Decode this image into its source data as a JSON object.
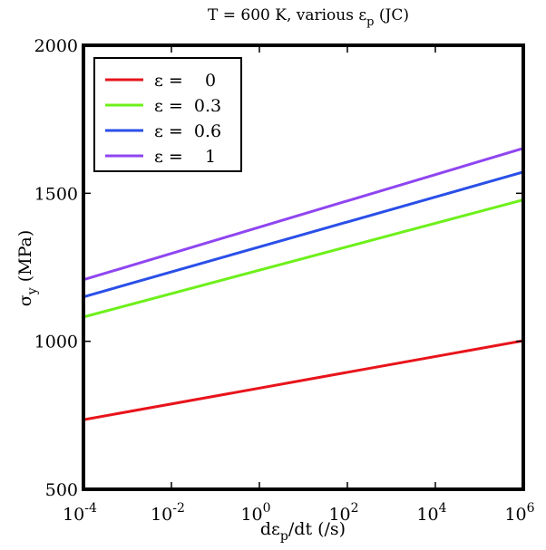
{
  "chart_data": {
    "type": "line",
    "title": "T = 600 K, various ε",
    "title_subscript": "p",
    "title_suffix": " (JC)",
    "xlabel": "dε",
    "xlabel_subscript": "p",
    "xlabel_suffix": "/dt (/s)",
    "ylabel": "σ",
    "ylabel_subscript": "y",
    "ylabel_suffix": " (MPa)",
    "xscale": "log10",
    "xlim_exponent": [
      -4,
      6
    ],
    "ylim": [
      500,
      2000
    ],
    "x_tick_exponents": [
      -4,
      -2,
      0,
      2,
      4,
      6
    ],
    "x_tick_base": "10",
    "x_tick_labels": [
      "-4",
      "-2",
      "0",
      "2",
      "4",
      "6"
    ],
    "y_ticks": [
      500,
      1000,
      1500,
      2000
    ],
    "y_tick_labels": [
      "500",
      "1000",
      "1500",
      "2000"
    ],
    "grid": false,
    "legend_position": "top-left",
    "series": [
      {
        "name": "ε =    0",
        "color": "#e8141b",
        "x_exponent": [
          -4,
          6
        ],
        "y": [
          735,
          1002
        ]
      },
      {
        "name": "ε =  0.3",
        "color": "#6df01b",
        "x_exponent": [
          -4,
          6
        ],
        "y": [
          1082,
          1478
        ]
      },
      {
        "name": "ε =  0.6",
        "color": "#2a4fe8",
        "x_exponent": [
          -4,
          6
        ],
        "y": [
          1150,
          1572
        ]
      },
      {
        "name": "ε =    1",
        "color": "#8f45f0",
        "x_exponent": [
          -4,
          6
        ],
        "y": [
          1208,
          1652
        ]
      }
    ]
  }
}
